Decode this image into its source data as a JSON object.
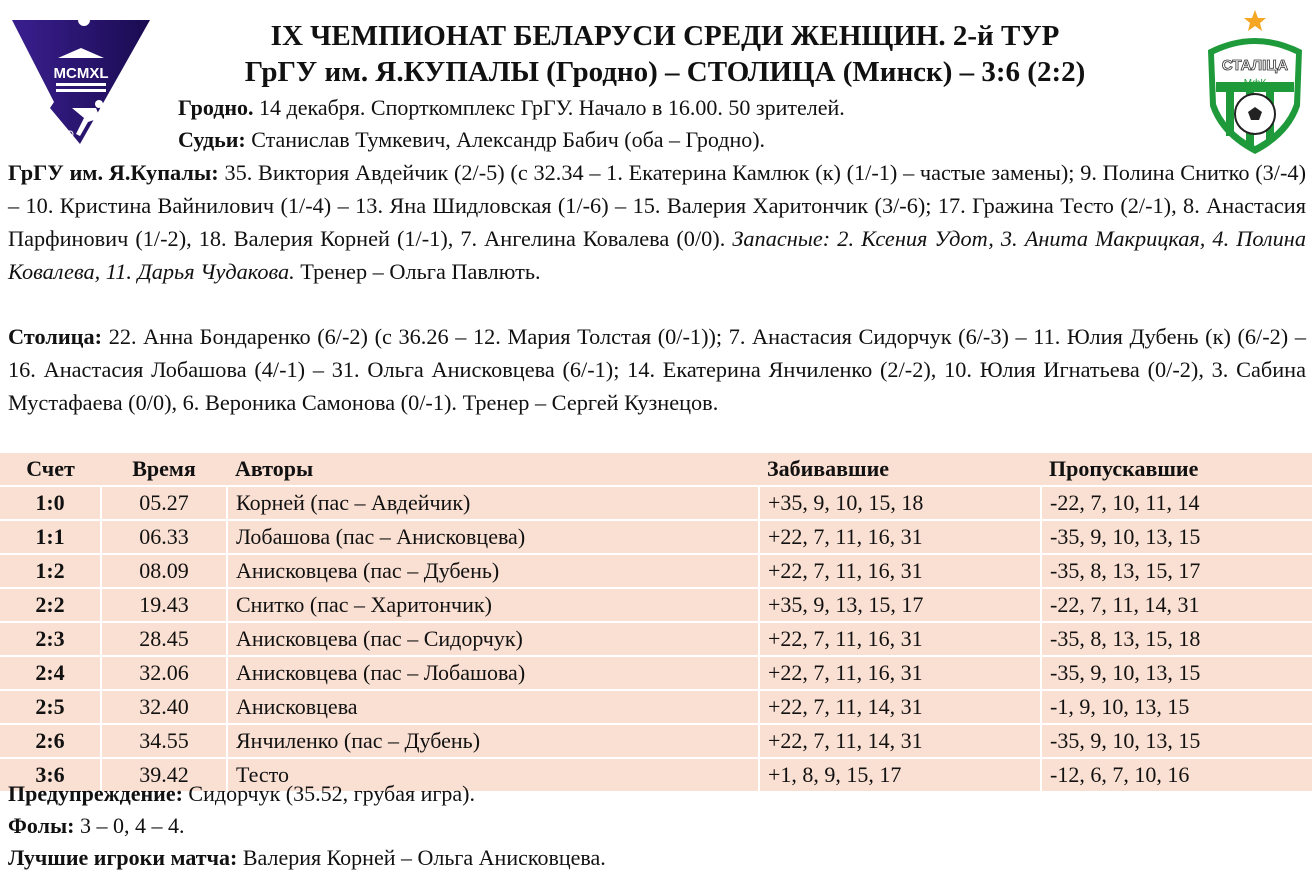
{
  "logos": {
    "left_text": "MCMXL",
    "right_text": "СТАЛIЦА",
    "right_sub": "МфК"
  },
  "header": {
    "title": "IX ЧЕМПИОНАТ БЕЛАРУСИ СРЕДИ ЖЕНЩИН. 2-й ТУР",
    "match": "ГрГУ им. Я.КУПАЛЫ (Гродно) – СТОЛИЦА (Минск) – 3:6 (2:2)",
    "venue_label": "Гродно.",
    "venue_text": " 14 декабря. Спорткомплекс ГрГУ. Начало в 16.00. 50 зрителей.",
    "referees_label": "Судьи:",
    "referees_text": " Станислав Тумкевич, Александр Бабич (оба – Гродно)."
  },
  "teams": [
    {
      "label": "ГрГУ им. Я.Купалы:",
      "lineup": " 35. Виктория Авдейчик (2/-5) (с 32.34 – 1. Екатерина Камлюк (к) (1/-1) – частые замены); 9. Полина Снитко (3/-4) – 10. Кристина Вайнилович (1/-4) – 13. Яна Шидловская (1/-6) – 15. Валерия Харитончик (3/-6); 17. Гражина Тесто (2/-1), 8. Анастасия Парфинович (1/-2), 18. Валерия Корней (1/-1), 7. Ангелина Ковалева (0/0). ",
      "subs": "Запасные: 2. Ксения Удот, 3. Анита Макрицкая, 4. Полина Ковалева, 11. Дарья Чудакова.",
      "coach": " Тренер – Ольга Павлють."
    },
    {
      "label": "Столица:",
      "lineup": " 22. Анна Бондаренко (6/-2) (с 36.26 – 12. Мария Толстая (0/-1)); 7. Анастасия Сидорчук (6/-3) – 11. Юлия Дубень (к) (6/-2) – 16. Анастасия Лобашова (4/-1) – 31. Ольга Анисковцева (6/-1); 14. Екатерина Янчиленко (2/-2), 10. Юлия Игнатьева (0/-2), 3. Сабина Мустафаева (0/0), 6. Вероника Самонова (0/-1).",
      "subs": "",
      "coach": " Тренер – Сергей Кузнецов."
    }
  ],
  "goals_table": {
    "columns": [
      "Счет",
      "Время",
      "Авторы",
      "Забивавшие",
      "Пропускавшие"
    ],
    "rows": [
      [
        "1:0",
        "05.27",
        "Корней (пас – Авдейчик)",
        "+35, 9, 10, 15, 18",
        "-22, 7, 10, 11, 14"
      ],
      [
        "1:1",
        "06.33",
        "Лобашова (пас – Анисковцева)",
        "+22, 7, 11, 16, 31",
        "-35, 9, 10, 13, 15"
      ],
      [
        "1:2",
        "08.09",
        "Анисковцева (пас – Дубень)",
        "+22, 7, 11, 16, 31",
        "-35, 8, 13, 15, 17"
      ],
      [
        "2:2",
        "19.43",
        "Снитко (пас – Харитончик)",
        "+35, 9, 13, 15, 17",
        "-22, 7, 11, 14, 31"
      ],
      [
        "2:3",
        "28.45",
        "Анисковцева (пас – Сидорчук)",
        "+22, 7, 11, 16, 31",
        "-35, 8, 13, 15, 18"
      ],
      [
        "2:4",
        "32.06",
        "Анисковцева (пас – Лобашова)",
        "+22, 7, 11, 16, 31",
        "-35, 9, 10, 13, 15"
      ],
      [
        "2:5",
        "32.40",
        "Анисковцева",
        "+22, 7, 11, 14, 31",
        "-1, 9, 10, 13, 15"
      ],
      [
        "2:6",
        "34.55",
        "Янчиленко (пас – Дубень)",
        "+22, 7, 11, 14, 31",
        "-35, 9, 10, 13, 15"
      ],
      [
        "3:6",
        "39.42",
        "Тесто",
        "+1, 8, 9, 15, 17",
        "-12, 6, 7, 10, 16"
      ]
    ]
  },
  "footer": {
    "warning_label": "Предупреждение:",
    "warning_text": " Сидорчук (35.52, грубая игра).",
    "fouls_label": "Фолы:",
    "fouls_text": " 3 – 0, 4 – 4.",
    "best_label": "Лучшие игроки матча:",
    "best_text": " Валерия Корней – Ольга Анисковцева."
  },
  "colors": {
    "table_bg": "#fae0d3",
    "left_logo": "#2a1470",
    "right_logo_green": "#1f9a3a",
    "star": "#f5a623"
  }
}
